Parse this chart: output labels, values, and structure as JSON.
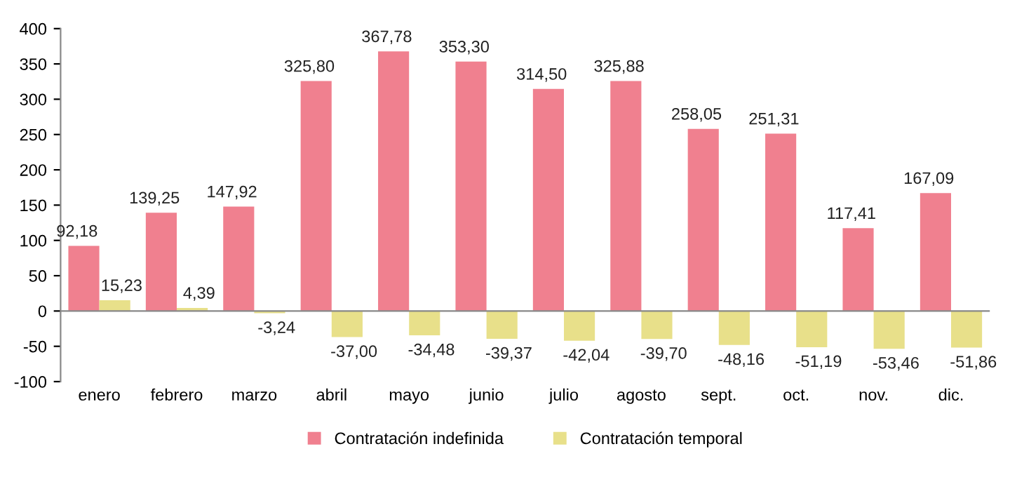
{
  "chart_data": {
    "type": "bar",
    "categories": [
      "enero",
      "febrero",
      "marzo",
      "abril",
      "mayo",
      "junio",
      "julio",
      "agosto",
      "sept.",
      "oct.",
      "nov.",
      "dic."
    ],
    "series": [
      {
        "name": "Contratación indefinida",
        "color": "#f0808f",
        "values": [
          92.18,
          139.25,
          147.92,
          325.8,
          367.78,
          353.3,
          314.5,
          325.88,
          258.05,
          251.31,
          117.41,
          167.09
        ],
        "value_labels": [
          "92,18",
          "139,25",
          "147,92",
          "325,80",
          "367,78",
          "353,30",
          "314,50",
          "325,88",
          "258,05",
          "251,31",
          "117,41",
          "167,09"
        ]
      },
      {
        "name": "Contratación temporal",
        "color": "#e8e08a",
        "values": [
          15.23,
          4.39,
          -3.24,
          -37.0,
          -34.48,
          -39.37,
          -42.04,
          -39.7,
          -48.16,
          -51.19,
          -53.46,
          -51.86
        ],
        "value_labels": [
          "15,23",
          "4,39",
          "-3,24",
          "-37,00",
          "-34,48",
          "-39,37",
          "-42,04",
          "-39,70",
          "-48,16",
          "-51,19",
          "-53,46",
          "-51,86"
        ]
      }
    ],
    "ylim": [
      -100,
      400
    ],
    "yticks": [
      -100,
      -50,
      0,
      50,
      100,
      150,
      200,
      250,
      300,
      350,
      400
    ],
    "grid": false,
    "ref_lines": [
      {
        "axis": "y",
        "value": 0,
        "color": "#888888"
      }
    ],
    "legend": "bottom"
  }
}
